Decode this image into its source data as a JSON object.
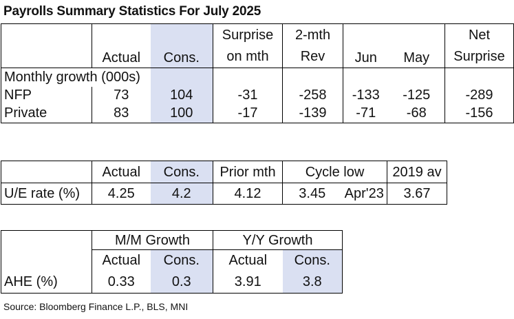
{
  "title": "Payrolls Summary Statistics For July 2025",
  "table1": {
    "headers": {
      "actual": "Actual",
      "cons": "Cons.",
      "surprise_l1": "Surprise",
      "surprise_l2": "on mth",
      "rev_l1": "2-mth",
      "rev_l2": "Rev",
      "jun": "Jun",
      "may": "May",
      "net_l1": "Net",
      "net_l2": "Surprise"
    },
    "section_label": "Monthly growth (000s)",
    "rows": [
      {
        "label": "NFP",
        "actual": "73",
        "cons": "104",
        "surprise": "-31",
        "rev": "-258",
        "jun": "-133",
        "may": "-125",
        "net": "-289"
      },
      {
        "label": "Private",
        "actual": "83",
        "cons": "100",
        "surprise": "-17",
        "rev": "-139",
        "jun": "-71",
        "may": "-68",
        "net": "-156"
      }
    ]
  },
  "table2": {
    "headers": {
      "actual": "Actual",
      "cons": "Cons.",
      "prior": "Prior mth",
      "cycle_low": "Cycle low",
      "avg2019": "2019 av"
    },
    "row": {
      "label": "U/E rate (%)",
      "actual": "4.25",
      "cons": "4.2",
      "prior": "4.12",
      "cycle_low": "3.45",
      "cycle_low_date": "Apr'23",
      "avg2019": "3.67"
    }
  },
  "table3": {
    "groups": {
      "mm": "M/M Growth",
      "yy": "Y/Y Growth"
    },
    "headers": {
      "mm_actual": "Actual",
      "mm_cons": "Cons.",
      "yy_actual": "Actual",
      "yy_cons": "Cons."
    },
    "row": {
      "label": "AHE (%)",
      "mm_actual": "0.33",
      "mm_cons": "0.3",
      "yy_actual": "3.91",
      "yy_cons": "3.8"
    }
  },
  "source": "Source: Bloomberg Finance L.P., BLS, MNI",
  "colors": {
    "shade": "#dae0f2",
    "border": "#000000"
  }
}
